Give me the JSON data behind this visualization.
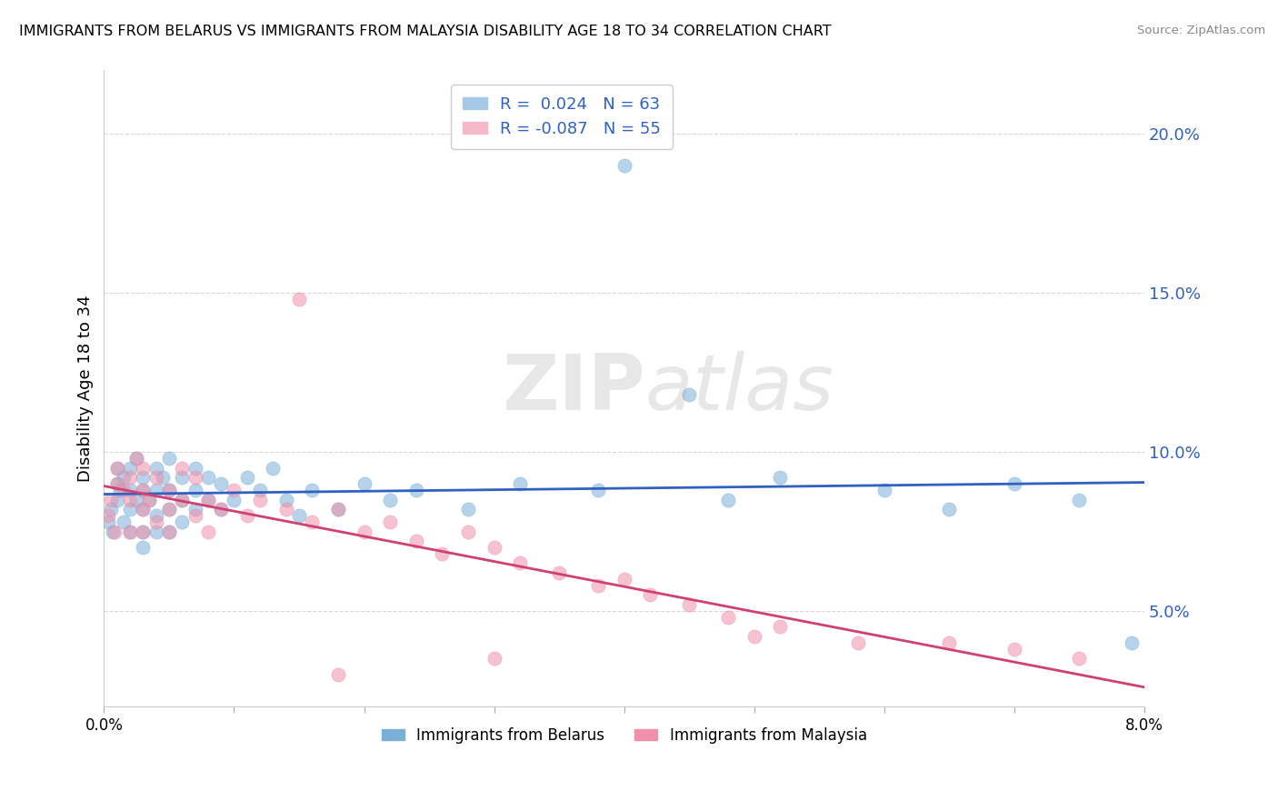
{
  "title": "IMMIGRANTS FROM BELARUS VS IMMIGRANTS FROM MALAYSIA DISABILITY AGE 18 TO 34 CORRELATION CHART",
  "source": "Source: ZipAtlas.com",
  "ylabel": "Disability Age 18 to 34",
  "legend_entries": [
    {
      "label": "R =  0.024   N = 63",
      "color": "#a8c8e8"
    },
    {
      "label": "R = -0.087   N = 55",
      "color": "#f4b8c8"
    }
  ],
  "legend_bottom": [
    "Immigrants from Belarus",
    "Immigrants from Malaysia"
  ],
  "blue_color": "#7ab0d8",
  "pink_color": "#f090aa",
  "trend_blue": "#3060c0",
  "trend_pink": "#d04070",
  "watermark_zip": "ZIP",
  "watermark_atlas": "atlas",
  "xlim": [
    0.0,
    0.08
  ],
  "ylim": [
    0.02,
    0.22
  ],
  "yticks": [
    0.05,
    0.1,
    0.15,
    0.2
  ],
  "ytick_labels": [
    "5.0%",
    "10.0%",
    "15.0%",
    "20.0%"
  ],
  "xtick_positions": [
    0.0,
    0.01,
    0.02,
    0.03,
    0.04,
    0.05,
    0.06,
    0.07,
    0.08
  ],
  "blue_scatter_x": [
    0.0003,
    0.0005,
    0.0007,
    0.001,
    0.001,
    0.001,
    0.0012,
    0.0015,
    0.0015,
    0.002,
    0.002,
    0.002,
    0.002,
    0.0025,
    0.0025,
    0.003,
    0.003,
    0.003,
    0.003,
    0.003,
    0.0035,
    0.004,
    0.004,
    0.004,
    0.004,
    0.0045,
    0.005,
    0.005,
    0.005,
    0.005,
    0.006,
    0.006,
    0.006,
    0.007,
    0.007,
    0.007,
    0.008,
    0.008,
    0.009,
    0.009,
    0.01,
    0.011,
    0.012,
    0.013,
    0.014,
    0.015,
    0.016,
    0.018,
    0.02,
    0.022,
    0.024,
    0.028,
    0.032,
    0.038,
    0.04,
    0.045,
    0.048,
    0.052,
    0.06,
    0.065,
    0.07,
    0.075,
    0.079
  ],
  "blue_scatter_y": [
    0.078,
    0.082,
    0.075,
    0.09,
    0.085,
    0.095,
    0.088,
    0.092,
    0.078,
    0.095,
    0.088,
    0.082,
    0.075,
    0.098,
    0.085,
    0.092,
    0.088,
    0.082,
    0.075,
    0.07,
    0.085,
    0.095,
    0.088,
    0.08,
    0.075,
    0.092,
    0.098,
    0.088,
    0.082,
    0.075,
    0.092,
    0.085,
    0.078,
    0.095,
    0.088,
    0.082,
    0.092,
    0.085,
    0.09,
    0.082,
    0.085,
    0.092,
    0.088,
    0.095,
    0.085,
    0.08,
    0.088,
    0.082,
    0.09,
    0.085,
    0.088,
    0.082,
    0.09,
    0.088,
    0.19,
    0.118,
    0.085,
    0.092,
    0.088,
    0.082,
    0.09,
    0.085,
    0.04
  ],
  "pink_scatter_x": [
    0.0003,
    0.0005,
    0.0008,
    0.001,
    0.001,
    0.0015,
    0.002,
    0.002,
    0.002,
    0.0025,
    0.003,
    0.003,
    0.003,
    0.003,
    0.0035,
    0.004,
    0.004,
    0.005,
    0.005,
    0.005,
    0.006,
    0.006,
    0.007,
    0.007,
    0.008,
    0.008,
    0.009,
    0.01,
    0.011,
    0.012,
    0.014,
    0.015,
    0.016,
    0.018,
    0.02,
    0.022,
    0.024,
    0.026,
    0.028,
    0.03,
    0.032,
    0.035,
    0.038,
    0.04,
    0.042,
    0.045,
    0.048,
    0.052,
    0.058,
    0.065,
    0.07,
    0.075,
    0.03,
    0.018,
    0.05
  ],
  "pink_scatter_y": [
    0.08,
    0.085,
    0.075,
    0.09,
    0.095,
    0.088,
    0.092,
    0.085,
    0.075,
    0.098,
    0.088,
    0.082,
    0.095,
    0.075,
    0.085,
    0.092,
    0.078,
    0.088,
    0.082,
    0.075,
    0.085,
    0.095,
    0.08,
    0.092,
    0.085,
    0.075,
    0.082,
    0.088,
    0.08,
    0.085,
    0.082,
    0.148,
    0.078,
    0.082,
    0.075,
    0.078,
    0.072,
    0.068,
    0.075,
    0.07,
    0.065,
    0.062,
    0.058,
    0.06,
    0.055,
    0.052,
    0.048,
    0.045,
    0.04,
    0.04,
    0.038,
    0.035,
    0.035,
    0.03,
    0.042
  ]
}
